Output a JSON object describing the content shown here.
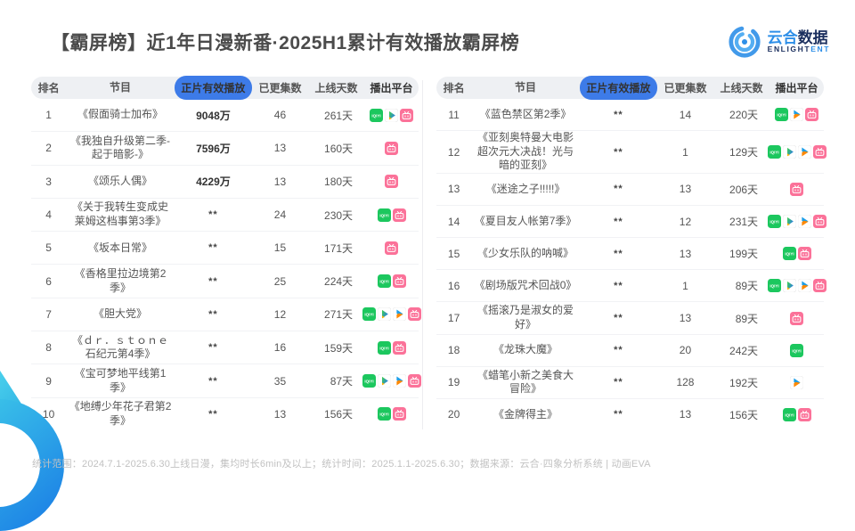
{
  "title": "【霸屏榜】近1年日漫新番·2025H1累计有效播放霸屏榜",
  "logo": {
    "cn_part1": "云合",
    "cn_part2": "数据",
    "en_part1": "ENLIGHT",
    "en_part2": "ENT"
  },
  "footer": "统计范围：2024.7.1-2025.6.30上线日漫，集均时长6min及以上；统计时间：2025.1.1-2025.6.30；数据来源：云合·四象分析系统 | 动画EVA",
  "colors": {
    "accent_blue": "#3d7be8",
    "header_bar_gray": "#eef0f3",
    "iqiyi_green": "#1cc75e",
    "bilibili_pink": "#fb7299",
    "youku_orange": "#ff8800",
    "youku_blue": "#1c9ee8",
    "tencent_green": "#3fd24a",
    "tencent_blue": "#2b7ce9",
    "tencent_orange": "#ffb400",
    "deco_cyan": "#3dc9e9",
    "deco_blue": "#1f87e6"
  },
  "chart_data": {
    "type": "table",
    "title": "【霸屏榜】近1年日漫新番·2025H1累计有效播放霸屏榜",
    "columns": [
      "排名",
      "节目",
      "正片有效播放",
      "已更集数",
      "上线天数",
      "播出平台"
    ],
    "highlighted_column": "正片有效播放",
    "tables": [
      {
        "rows": [
          {
            "rank": "1",
            "title": "《假面骑士加布》",
            "views": "9048万",
            "episodes": "46",
            "days": "261天",
            "platforms": [
              "iqiyi",
              "tencent",
              "bilibili"
            ]
          },
          {
            "rank": "2",
            "title": "《我独自升级第二季-起于暗影-》",
            "views": "7596万",
            "episodes": "13",
            "days": "160天",
            "platforms": [
              "bilibili"
            ]
          },
          {
            "rank": "3",
            "title": "《颂乐人偶》",
            "views": "4229万",
            "episodes": "13",
            "days": "180天",
            "platforms": [
              "bilibili"
            ]
          },
          {
            "rank": "4",
            "title": "《关于我转生变成史莱姆这档事第3季》",
            "views": "**",
            "episodes": "24",
            "days": "230天",
            "platforms": [
              "iqiyi",
              "bilibili"
            ]
          },
          {
            "rank": "5",
            "title": "《坂本日常》",
            "views": "**",
            "episodes": "15",
            "days": "171天",
            "platforms": [
              "bilibili"
            ]
          },
          {
            "rank": "6",
            "title": "《香格里拉边境第2季》",
            "views": "**",
            "episodes": "25",
            "days": "224天",
            "platforms": [
              "iqiyi",
              "bilibili"
            ]
          },
          {
            "rank": "7",
            "title": "《胆大党》",
            "views": "**",
            "episodes": "12",
            "days": "271天",
            "platforms": [
              "iqiyi",
              "tencent",
              "youku",
              "bilibili"
            ]
          },
          {
            "rank": "8",
            "title": "《ｄｒ．ｓｔｏｎｅ石纪元第4季》",
            "views": "**",
            "episodes": "16",
            "days": "159天",
            "platforms": [
              "iqiyi",
              "bilibili"
            ]
          },
          {
            "rank": "9",
            "title": "《宝可梦地平线第1季》",
            "views": "**",
            "episodes": "35",
            "days": "87天",
            "platforms": [
              "iqiyi",
              "tencent",
              "youku",
              "bilibili"
            ]
          },
          {
            "rank": "10",
            "title": "《地缚少年花子君第2季》",
            "views": "**",
            "episodes": "13",
            "days": "156天",
            "platforms": [
              "iqiyi",
              "bilibili"
            ]
          }
        ]
      },
      {
        "rows": [
          {
            "rank": "11",
            "title": "《蓝色禁区第2季》",
            "views": "**",
            "episodes": "14",
            "days": "220天",
            "platforms": [
              "iqiyi",
              "youku",
              "bilibili"
            ]
          },
          {
            "rank": "12",
            "title": "《亚刻奥特曼大电影超次元大决战！光与暗的亚刻》",
            "views": "**",
            "episodes": "1",
            "days": "129天",
            "platforms": [
              "iqiyi",
              "tencent",
              "youku",
              "bilibili"
            ]
          },
          {
            "rank": "13",
            "title": "《迷途之子!!!!!》",
            "views": "**",
            "episodes": "13",
            "days": "206天",
            "platforms": [
              "bilibili"
            ]
          },
          {
            "rank": "14",
            "title": "《夏目友人帐第7季》",
            "views": "**",
            "episodes": "12",
            "days": "231天",
            "platforms": [
              "iqiyi",
              "tencent",
              "youku",
              "bilibili"
            ]
          },
          {
            "rank": "15",
            "title": "《少女乐队的呐喊》",
            "views": "**",
            "episodes": "13",
            "days": "199天",
            "platforms": [
              "iqiyi",
              "bilibili"
            ]
          },
          {
            "rank": "16",
            "title": "《剧场版咒术回战0》",
            "views": "**",
            "episodes": "1",
            "days": "89天",
            "platforms": [
              "iqiyi",
              "tencent",
              "youku",
              "bilibili"
            ]
          },
          {
            "rank": "17",
            "title": "《摇滚乃是淑女的爱好》",
            "views": "**",
            "episodes": "13",
            "days": "89天",
            "platforms": [
              "bilibili"
            ]
          },
          {
            "rank": "18",
            "title": "《龙珠大魔》",
            "views": "**",
            "episodes": "20",
            "days": "242天",
            "platforms": [
              "iqiyi"
            ]
          },
          {
            "rank": "19",
            "title": "《蜡笔小新之美食大冒险》",
            "views": "**",
            "episodes": "128",
            "days": "192天",
            "platforms": [
              "youku"
            ]
          },
          {
            "rank": "20",
            "title": "《金牌得主》",
            "views": "**",
            "episodes": "13",
            "days": "156天",
            "platforms": [
              "iqiyi",
              "bilibili"
            ]
          }
        ]
      }
    ]
  }
}
